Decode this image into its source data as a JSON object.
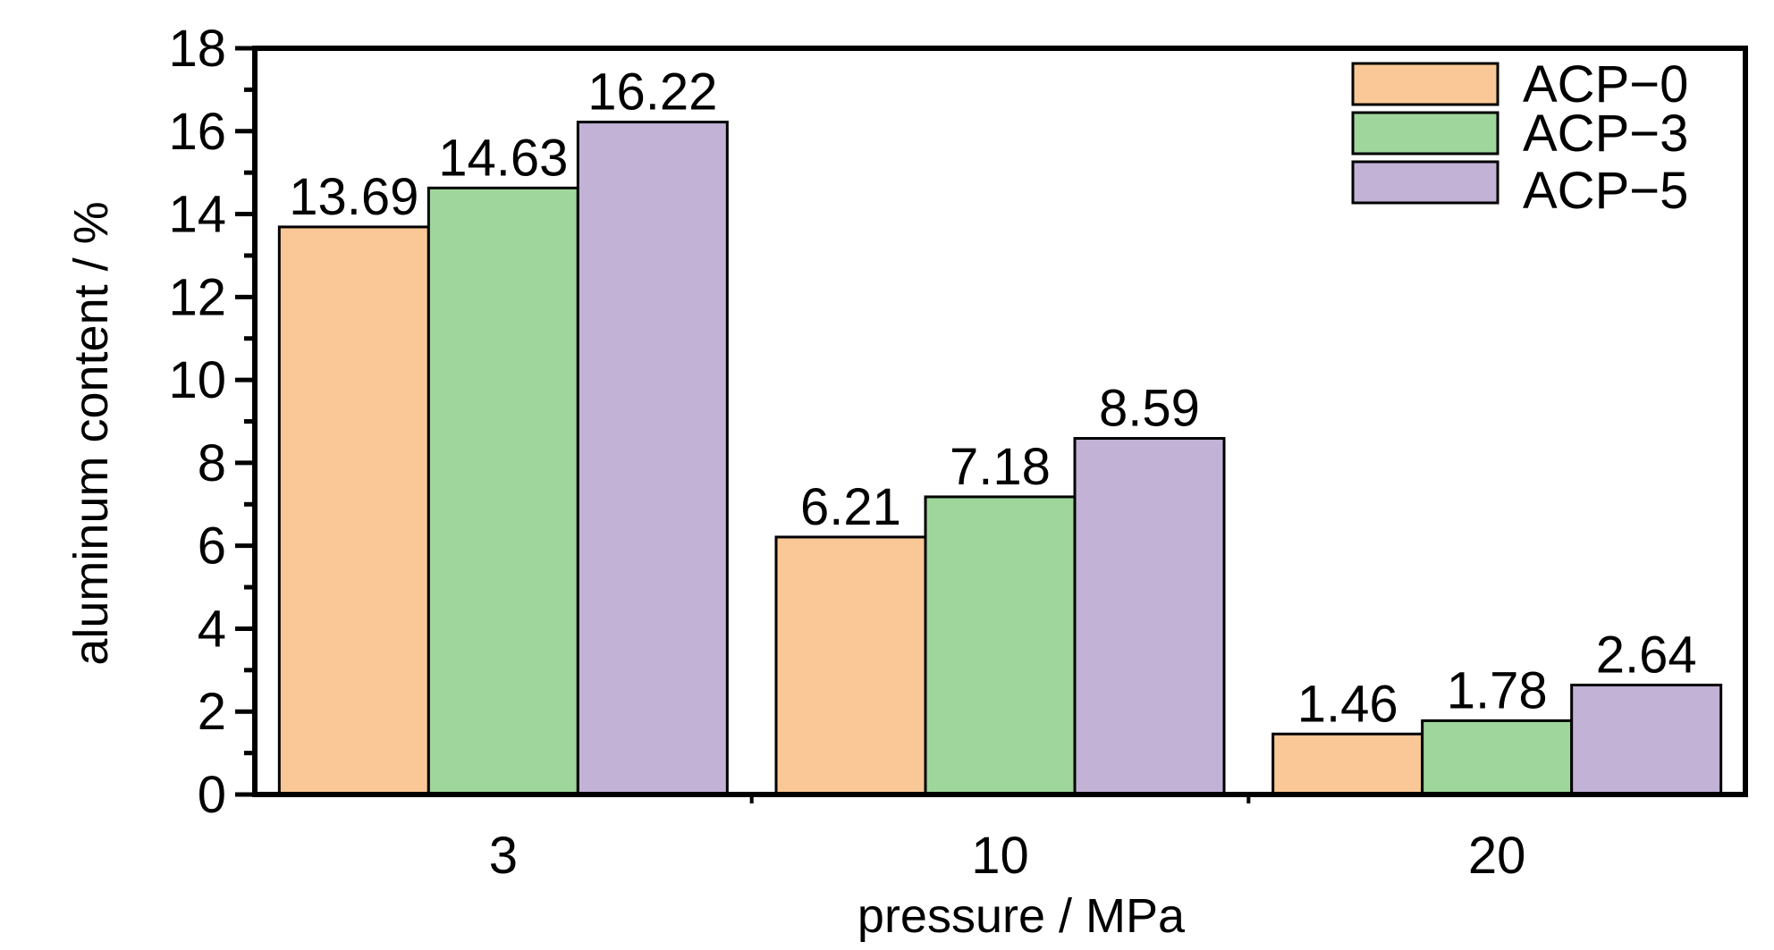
{
  "chart_data": {
    "type": "bar",
    "categories": [
      "3",
      "10",
      "20"
    ],
    "series": [
      {
        "name": "ACP−0",
        "values": [
          13.69,
          6.21,
          1.46
        ],
        "labels": [
          "13.69",
          "6.21",
          "1.46"
        ]
      },
      {
        "name": "ACP−3",
        "values": [
          14.63,
          7.18,
          1.78
        ],
        "labels": [
          "14.63",
          "7.18",
          "1.78"
        ]
      },
      {
        "name": "ACP−5",
        "values": [
          16.22,
          8.59,
          2.64
        ],
        "labels": [
          "16.22",
          "8.59",
          "2.64"
        ]
      }
    ],
    "colors": [
      "#FAC896",
      "#9FD69C",
      "#C2B2D6"
    ],
    "xlabel": "pressure / MPa",
    "ylabel": "aluminum content / %",
    "ylim": [
      0,
      18
    ],
    "yticks": [
      "0",
      "2",
      "4",
      "6",
      "8",
      "10",
      "12",
      "14",
      "16",
      "18"
    ],
    "grid": false,
    "legend_position": "top-right"
  }
}
